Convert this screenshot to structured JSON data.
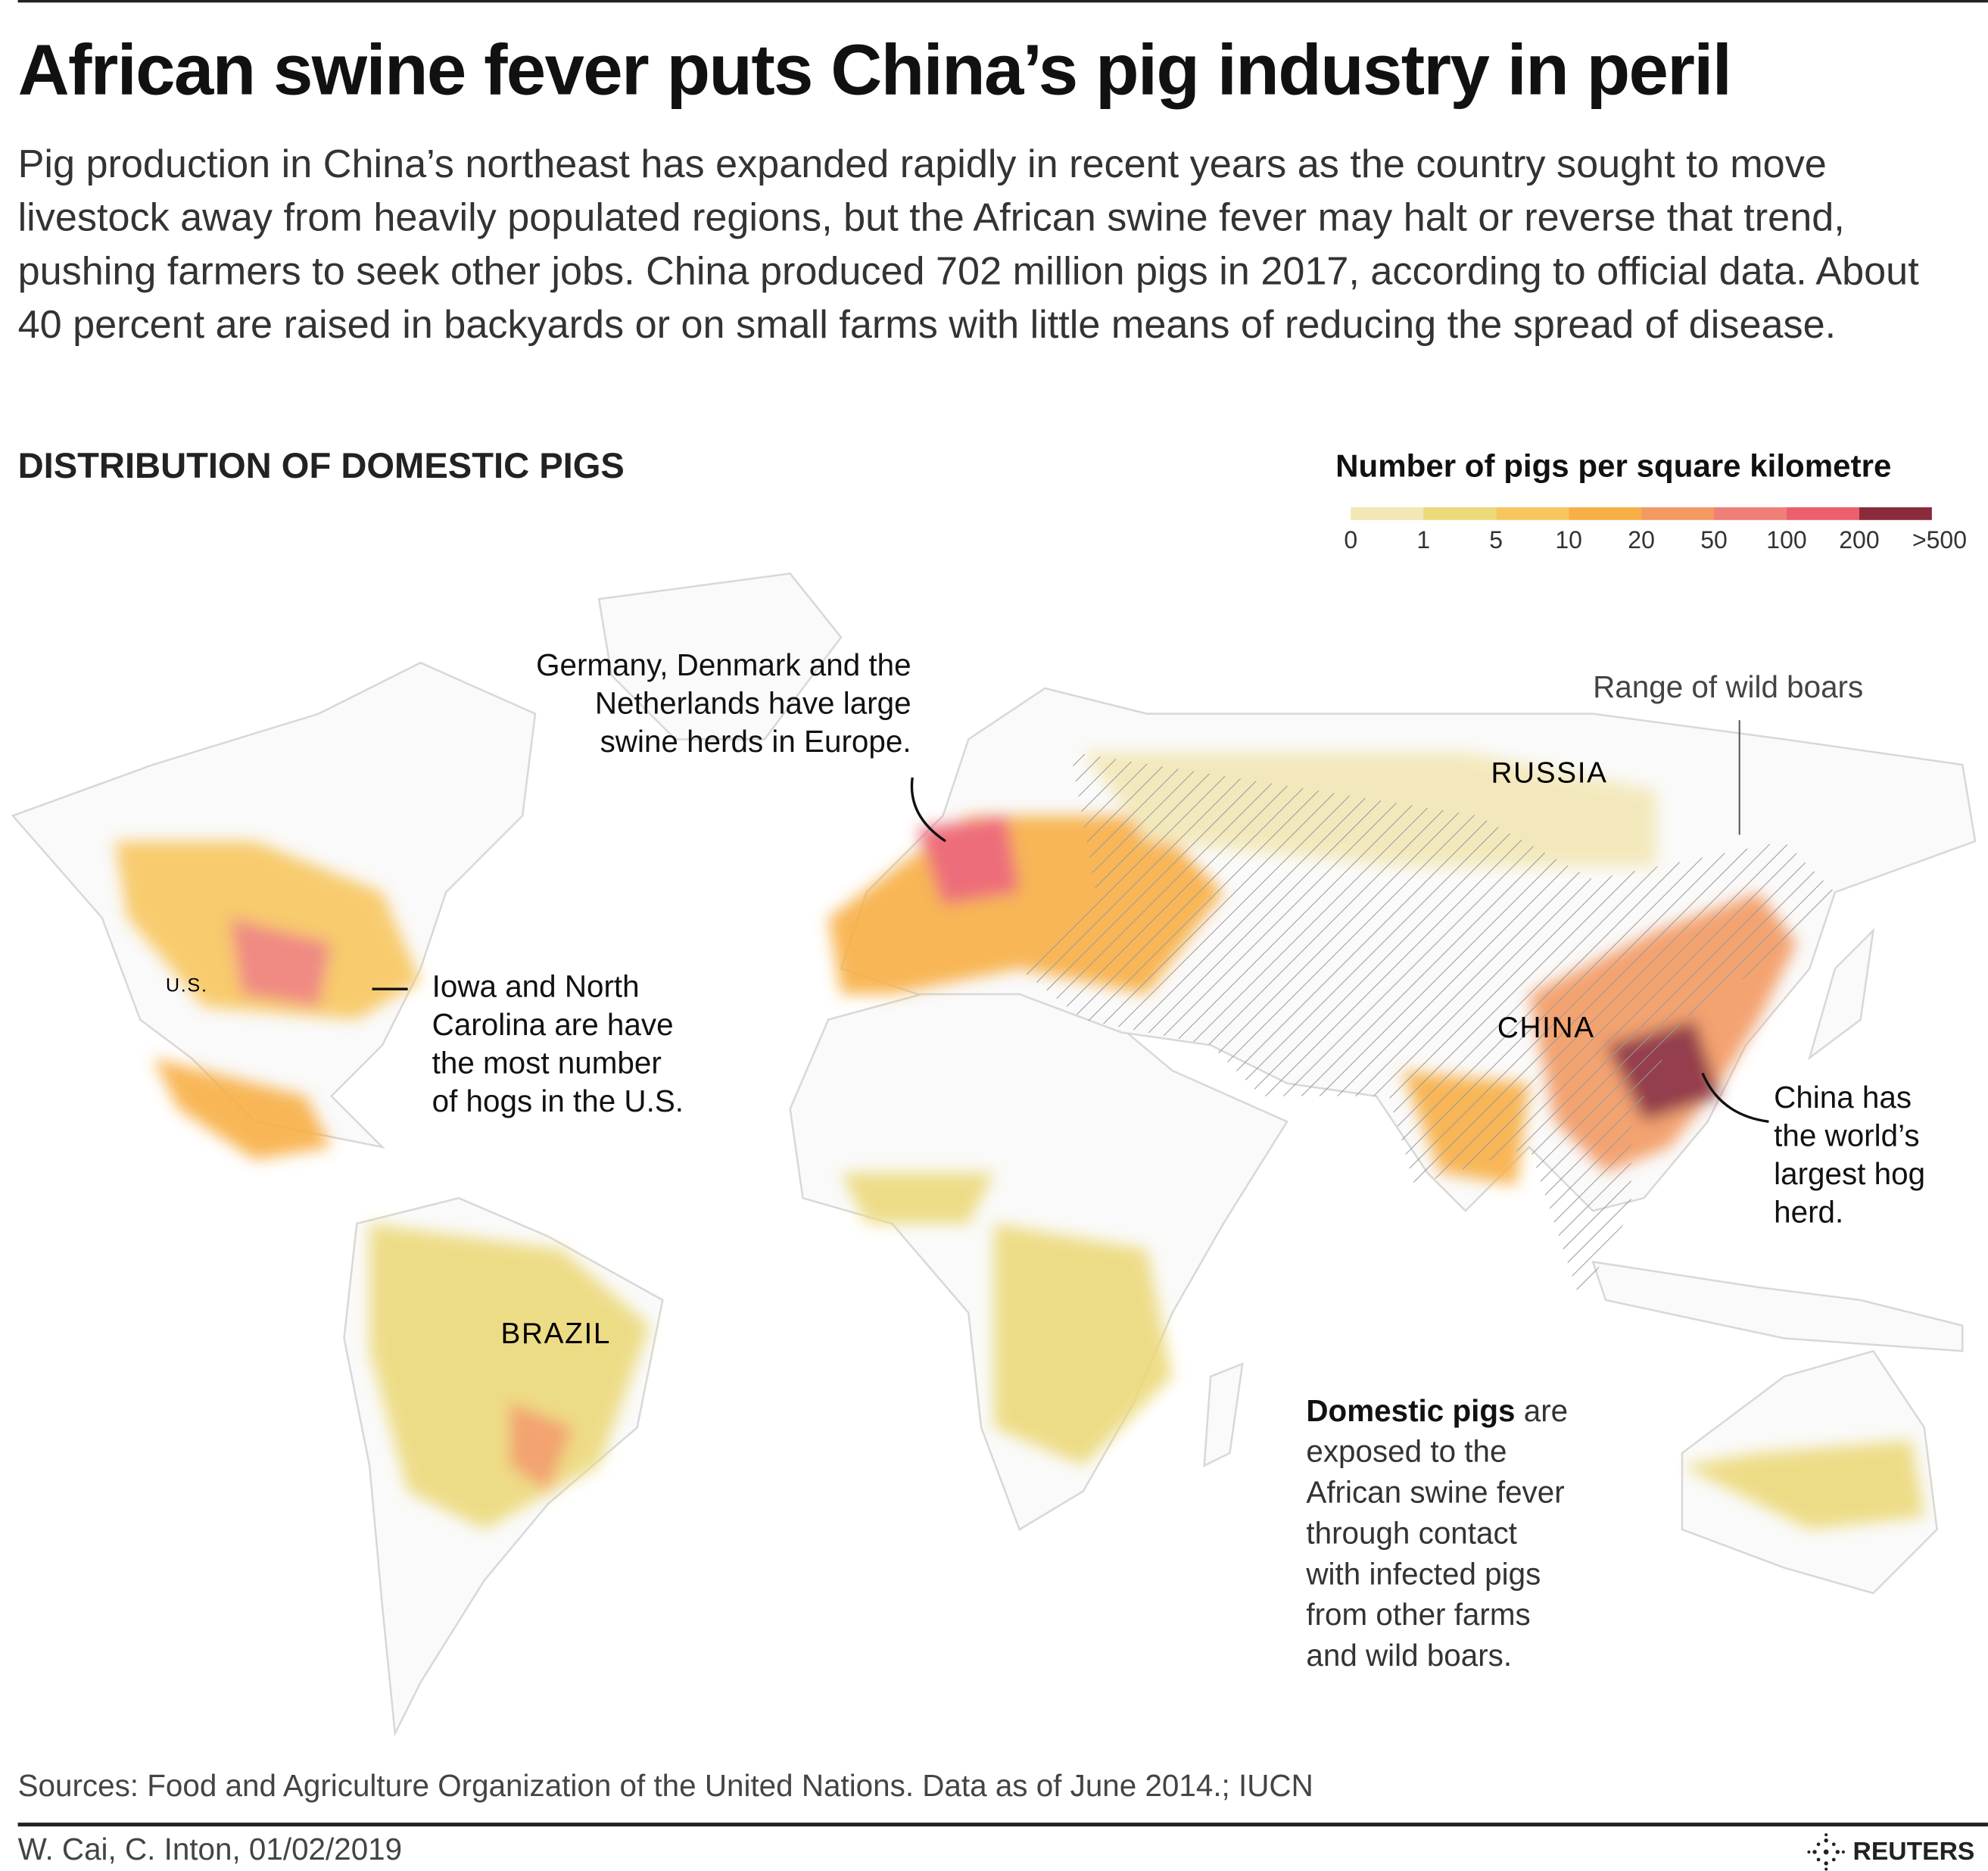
{
  "header": {
    "title": "African swine fever puts China’s pig industry in peril",
    "description": "Pig production in China’s northeast has expanded rapidly in recent years as the country sought to move livestock away from heavily populated regions, but the African swine fever may halt or reverse that trend, pushing farmers to seek other jobs. China produced 702 million pigs in 2017, according to official data. About 40 percent are raised in backyards or on small farms with little means of reducing the spread of disease."
  },
  "map": {
    "subtitle": "DISTRIBUTION OF DOMESTIC PIGS",
    "legend": {
      "title": "Number of pigs per square kilometre",
      "ticks": [
        "0",
        "1",
        "5",
        "10",
        "20",
        "50",
        "100",
        "200",
        ">500"
      ],
      "colors": [
        "#f3e7b6",
        "#ecd97a",
        "#f8c65e",
        "#f8af45",
        "#f39a62",
        "#f07f78",
        "#ec5f6d",
        "#8b2a3a"
      ]
    },
    "labels": {
      "us": "U.S.",
      "russia": "RUSSIA",
      "china": "CHINA",
      "brazil": "BRAZIL"
    },
    "annotations": {
      "europe": [
        "Germany, Denmark and the",
        "Netherlands have large",
        "swine herds in Europe."
      ],
      "us": [
        "Iowa and North",
        "Carolina are have",
        "the most number",
        "of hogs in the U.S."
      ],
      "boars": "Range of wild boars",
      "china": [
        "China has",
        "the world’s",
        "largest hog",
        "herd."
      ],
      "domestic_bold": "Domestic pigs",
      "domestic_rest": [
        "are",
        "exposed to the",
        "African swine fever",
        "through contact",
        "with infected pigs",
        "from other farms",
        "and wild boars."
      ]
    }
  },
  "footer": {
    "sources": "Sources: Food and Agriculture Organization of the United Nations. Data as of June 2014.; IUCN",
    "credit": "W. Cai, C. Inton, 01/02/2019",
    "brand": "REUTERS"
  }
}
